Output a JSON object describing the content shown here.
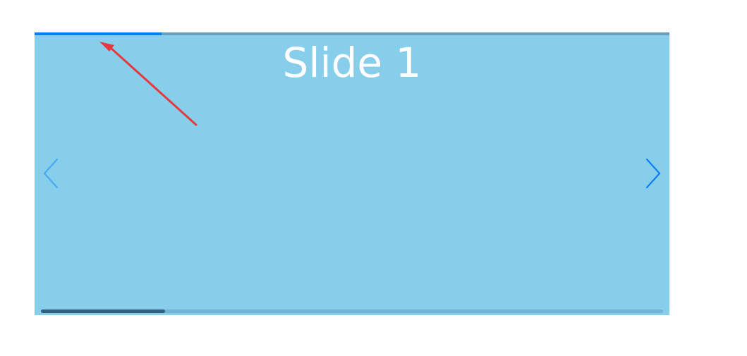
{
  "carousel": {
    "background_color": "#87ceeb",
    "progress": {
      "fraction": 0.2,
      "fill_color": "#0d7ef0",
      "track_color": "#649fbe"
    },
    "slide": {
      "title": "Slide 1"
    },
    "prev_button": {
      "icon": "chevron-left-icon",
      "color": "#4aa8f0"
    },
    "next_button": {
      "icon": "chevron-right-icon",
      "color": "#0d7ef0"
    },
    "scrollbar": {
      "fraction": 0.2,
      "thumb_color": "#336180",
      "track_color": "#6fb6d6"
    }
  },
  "annotation": {
    "icon": "red-arrow-icon",
    "color": "#e8383d"
  }
}
